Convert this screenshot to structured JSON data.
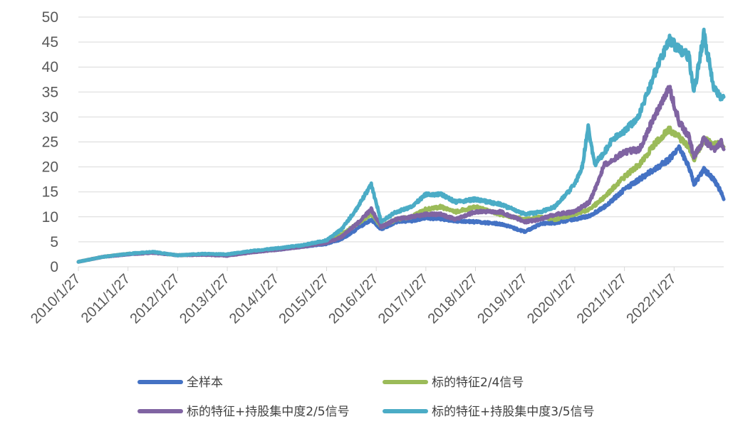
{
  "chart_data": {
    "type": "line",
    "title": "",
    "xlabel": "",
    "ylabel": "",
    "ylim": [
      0,
      50
    ],
    "yticks": [
      "0",
      "5",
      "10",
      "15",
      "20",
      "25",
      "30",
      "35",
      "40",
      "45",
      "50"
    ],
    "xticks": [
      "2010/1/27",
      "2011/1/27",
      "2012/1/27",
      "2013/1/27",
      "2014/1/27",
      "2015/1/27",
      "2016/1/27",
      "2017/1/27",
      "2018/1/27",
      "2019/1/27",
      "2020/1/27",
      "2021/1/27",
      "2022/1/27"
    ],
    "x_range": [
      "2010/1/27",
      "2022/12/31"
    ],
    "grid": "horizontal",
    "legend_position": "bottom",
    "series": [
      {
        "name": "全样本",
        "color": "#4472c4",
        "points": [
          [
            2010.0,
            1.0
          ],
          [
            2010.5,
            2.0
          ],
          [
            2011.0,
            2.5
          ],
          [
            2011.5,
            2.9
          ],
          [
            2012.0,
            2.3
          ],
          [
            2012.5,
            2.5
          ],
          [
            2013.0,
            2.4
          ],
          [
            2013.5,
            3.0
          ],
          [
            2014.0,
            3.4
          ],
          [
            2014.5,
            4.0
          ],
          [
            2015.0,
            4.6
          ],
          [
            2015.3,
            5.5
          ],
          [
            2015.6,
            7.5
          ],
          [
            2015.9,
            9.5
          ],
          [
            2016.1,
            7.5
          ],
          [
            2016.4,
            9.0
          ],
          [
            2016.7,
            9.2
          ],
          [
            2017.0,
            9.8
          ],
          [
            2017.3,
            9.6
          ],
          [
            2017.6,
            9.2
          ],
          [
            2018.0,
            9.0
          ],
          [
            2018.5,
            8.6
          ],
          [
            2019.0,
            7.0
          ],
          [
            2019.3,
            8.6
          ],
          [
            2019.6,
            8.8
          ],
          [
            2020.0,
            9.5
          ],
          [
            2020.3,
            10.2
          ],
          [
            2020.6,
            12.0
          ],
          [
            2021.0,
            15.5
          ],
          [
            2021.3,
            17.5
          ],
          [
            2021.6,
            19.5
          ],
          [
            2021.9,
            21.5
          ],
          [
            2022.1,
            24.0
          ],
          [
            2022.3,
            20.0
          ],
          [
            2022.4,
            16.5
          ],
          [
            2022.6,
            19.5
          ],
          [
            2022.8,
            17.5
          ],
          [
            2022.95,
            15.0
          ],
          [
            2023.0,
            13.5
          ]
        ]
      },
      {
        "name": "标的特征2/4信号",
        "color": "#9bbb59",
        "points": [
          [
            2010.0,
            1.0
          ],
          [
            2010.5,
            2.0
          ],
          [
            2011.0,
            2.6
          ],
          [
            2011.5,
            2.9
          ],
          [
            2012.0,
            2.3
          ],
          [
            2012.5,
            2.5
          ],
          [
            2013.0,
            2.4
          ],
          [
            2013.5,
            3.0
          ],
          [
            2014.0,
            3.5
          ],
          [
            2014.5,
            4.1
          ],
          [
            2015.0,
            5.0
          ],
          [
            2015.3,
            6.5
          ],
          [
            2015.6,
            8.5
          ],
          [
            2015.9,
            10.5
          ],
          [
            2016.1,
            8.0
          ],
          [
            2016.4,
            9.5
          ],
          [
            2016.7,
            10.0
          ],
          [
            2017.0,
            11.5
          ],
          [
            2017.3,
            12.0
          ],
          [
            2017.6,
            11.0
          ],
          [
            2018.0,
            12.0
          ],
          [
            2018.5,
            10.5
          ],
          [
            2019.0,
            9.5
          ],
          [
            2019.3,
            10.0
          ],
          [
            2019.6,
            9.5
          ],
          [
            2020.0,
            10.5
          ],
          [
            2020.3,
            11.5
          ],
          [
            2020.6,
            14.0
          ],
          [
            2021.0,
            18.0
          ],
          [
            2021.3,
            20.5
          ],
          [
            2021.6,
            24.5
          ],
          [
            2021.9,
            27.5
          ],
          [
            2022.1,
            26.0
          ],
          [
            2022.3,
            24.0
          ],
          [
            2022.4,
            21.5
          ],
          [
            2022.6,
            25.5
          ],
          [
            2022.8,
            24.5
          ],
          [
            2022.95,
            24.5
          ],
          [
            2023.0,
            24.0
          ]
        ]
      },
      {
        "name": "标的特征+持股集中度2/5信号",
        "color": "#8064a2",
        "points": [
          [
            2010.0,
            1.0
          ],
          [
            2010.5,
            2.0
          ],
          [
            2011.0,
            2.5
          ],
          [
            2011.5,
            2.8
          ],
          [
            2012.0,
            2.3
          ],
          [
            2012.5,
            2.4
          ],
          [
            2013.0,
            2.2
          ],
          [
            2013.5,
            2.9
          ],
          [
            2014.0,
            3.4
          ],
          [
            2014.5,
            4.0
          ],
          [
            2015.0,
            4.8
          ],
          [
            2015.3,
            6.0
          ],
          [
            2015.6,
            8.5
          ],
          [
            2015.9,
            11.5
          ],
          [
            2016.1,
            8.0
          ],
          [
            2016.4,
            9.5
          ],
          [
            2016.7,
            10.0
          ],
          [
            2017.0,
            10.5
          ],
          [
            2017.3,
            10.5
          ],
          [
            2017.6,
            9.5
          ],
          [
            2018.0,
            11.0
          ],
          [
            2018.5,
            11.0
          ],
          [
            2019.0,
            9.0
          ],
          [
            2019.3,
            9.5
          ],
          [
            2019.6,
            10.5
          ],
          [
            2020.0,
            11.0
          ],
          [
            2020.3,
            13.0
          ],
          [
            2020.6,
            20.5
          ],
          [
            2021.0,
            23.0
          ],
          [
            2021.3,
            23.5
          ],
          [
            2021.6,
            30.0
          ],
          [
            2021.9,
            36.0
          ],
          [
            2022.1,
            29.0
          ],
          [
            2022.3,
            26.0
          ],
          [
            2022.4,
            22.0
          ],
          [
            2022.6,
            25.5
          ],
          [
            2022.8,
            23.5
          ],
          [
            2022.95,
            25.0
          ],
          [
            2023.0,
            23.5
          ]
        ]
      },
      {
        "name": "标的特征+持股集中度3/5信号",
        "color": "#4bacc6",
        "points": [
          [
            2010.0,
            1.0
          ],
          [
            2010.5,
            2.0
          ],
          [
            2011.0,
            2.6
          ],
          [
            2011.5,
            3.0
          ],
          [
            2012.0,
            2.3
          ],
          [
            2012.5,
            2.6
          ],
          [
            2013.0,
            2.5
          ],
          [
            2013.5,
            3.2
          ],
          [
            2014.0,
            3.7
          ],
          [
            2014.5,
            4.3
          ],
          [
            2015.0,
            5.3
          ],
          [
            2015.3,
            7.5
          ],
          [
            2015.6,
            11.5
          ],
          [
            2015.9,
            16.5
          ],
          [
            2016.1,
            9.0
          ],
          [
            2016.4,
            11.0
          ],
          [
            2016.7,
            12.0
          ],
          [
            2017.0,
            14.5
          ],
          [
            2017.3,
            14.5
          ],
          [
            2017.6,
            13.0
          ],
          [
            2018.0,
            13.5
          ],
          [
            2018.5,
            12.5
          ],
          [
            2019.0,
            10.5
          ],
          [
            2019.3,
            11.0
          ],
          [
            2019.6,
            12.0
          ],
          [
            2020.0,
            16.5
          ],
          [
            2020.15,
            20.0
          ],
          [
            2020.27,
            28.0
          ],
          [
            2020.4,
            20.5
          ],
          [
            2020.6,
            23.0
          ],
          [
            2020.75,
            25.5
          ],
          [
            2021.0,
            27.0
          ],
          [
            2021.3,
            30.5
          ],
          [
            2021.6,
            38.5
          ],
          [
            2021.9,
            45.5
          ],
          [
            2022.1,
            43.5
          ],
          [
            2022.3,
            42.0
          ],
          [
            2022.4,
            35.0
          ],
          [
            2022.6,
            46.5
          ],
          [
            2022.8,
            36.0
          ],
          [
            2022.95,
            34.0
          ],
          [
            2023.0,
            34.0
          ]
        ]
      }
    ]
  }
}
